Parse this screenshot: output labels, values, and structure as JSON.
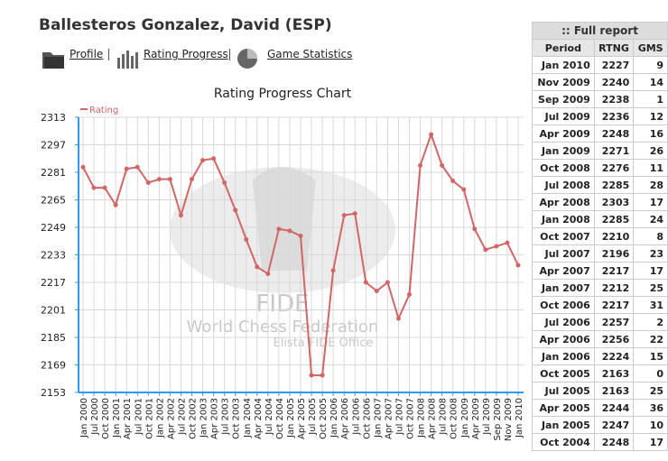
{
  "header": {
    "title": "Ballesteros Gonzalez, David (ESP)",
    "links": [
      "Profile",
      "Rating Progress",
      "Game Statistics"
    ]
  },
  "chart_data": {
    "type": "line",
    "title": "Rating Progress Chart",
    "watermark": [
      "FIDE",
      "World Chess Federation",
      "Elista FIDE Office"
    ],
    "categories": [
      "Jan 2000",
      "Jul 2000",
      "Oct 2000",
      "Jan 2001",
      "Apr 2001",
      "Jul 2001",
      "Oct 2001",
      "Jan 2002",
      "Apr 2002",
      "Jul 2002",
      "Oct 2002",
      "Jan 2003",
      "Apr 2003",
      "Jul 2003",
      "Oct 2003",
      "Jan 2004",
      "Apr 2004",
      "Jul 2004",
      "Oct 2004",
      "Jan 2005",
      "Apr 2005",
      "Jul 2005",
      "Oct 2005",
      "Jan 2006",
      "Apr 2006",
      "Jul 2006",
      "Oct 2006",
      "Jan 2007",
      "Apr 2007",
      "Jul 2007",
      "Oct 2007",
      "Jan 2008",
      "Apr 2008",
      "Jul 2008",
      "Oct 2008",
      "Jan 2009",
      "Apr 2009",
      "Jul 2009",
      "Sep 2009",
      "Nov 2009",
      "Jan 2010"
    ],
    "series": [
      {
        "name": "Rating",
        "color": "#d06666",
        "values": [
          2284,
          2272,
          2272,
          2262,
          2283,
          2284,
          2275,
          2277,
          2277,
          2256,
          2277,
          2288,
          2289,
          2275,
          2259,
          2242,
          2226,
          2222,
          2248,
          2247,
          2244,
          2163,
          2163,
          2224,
          2256,
          2257,
          2217,
          2212,
          2217,
          2196,
          2210,
          2285,
          2303,
          2285,
          2276,
          2271,
          2248,
          2236,
          2238,
          2240,
          2227
        ]
      }
    ],
    "ylim": [
      2153,
      2313
    ],
    "yticks": [
      2153,
      2169,
      2185,
      2201,
      2217,
      2233,
      2249,
      2265,
      2281,
      2297,
      2313
    ],
    "grid": true,
    "legend": "top-left"
  },
  "table": {
    "title": ":: Full report",
    "columns": [
      "Period",
      "RTNG",
      "GMS"
    ],
    "rows": [
      [
        "Jan 2010",
        "2227",
        "9"
      ],
      [
        "Nov 2009",
        "2240",
        "14"
      ],
      [
        "Sep 2009",
        "2238",
        "1"
      ],
      [
        "Jul 2009",
        "2236",
        "12"
      ],
      [
        "Apr 2009",
        "2248",
        "16"
      ],
      [
        "Jan 2009",
        "2271",
        "26"
      ],
      [
        "Oct 2008",
        "2276",
        "11"
      ],
      [
        "Jul 2008",
        "2285",
        "28"
      ],
      [
        "Apr 2008",
        "2303",
        "17"
      ],
      [
        "Jan 2008",
        "2285",
        "24"
      ],
      [
        "Oct 2007",
        "2210",
        "8"
      ],
      [
        "Jul 2007",
        "2196",
        "23"
      ],
      [
        "Apr 2007",
        "2217",
        "17"
      ],
      [
        "Jan 2007",
        "2212",
        "25"
      ],
      [
        "Oct 2006",
        "2217",
        "31"
      ],
      [
        "Jul 2006",
        "2257",
        "2"
      ],
      [
        "Apr 2006",
        "2256",
        "22"
      ],
      [
        "Jan 2006",
        "2224",
        "15"
      ],
      [
        "Oct 2005",
        "2163",
        "0"
      ],
      [
        "Jul 2005",
        "2163",
        "25"
      ],
      [
        "Apr 2005",
        "2244",
        "36"
      ],
      [
        "Jan 2005",
        "2247",
        "10"
      ],
      [
        "Oct 2004",
        "2248",
        "17"
      ]
    ]
  }
}
